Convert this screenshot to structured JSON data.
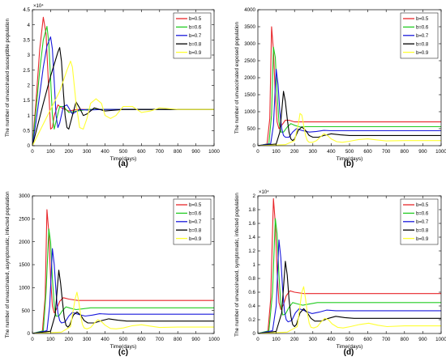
{
  "series_colors": [
    "#e8262a",
    "#22cc22",
    "#1a1adc",
    "#000000",
    "#ffff33"
  ],
  "chart_data": [
    {
      "type": "line",
      "panel_label": "(a)",
      "title": "",
      "xlabel": "Time(days)",
      "ylabel": "The number of unvaccinated susceptible population",
      "exponent": "×10⁴",
      "xlim": [
        0,
        1000
      ],
      "ylim": [
        0,
        4.5
      ],
      "xticks": [
        "0",
        "100",
        "200",
        "300",
        "400",
        "500",
        "600",
        "700",
        "800",
        "900",
        "1000"
      ],
      "yticks": [
        "0",
        "0.5",
        "1",
        "1.5",
        "2",
        "2.5",
        "3",
        "3.5",
        "4",
        "4.5"
      ],
      "legend_position": "top-right",
      "series": [
        {
          "name": "b=0.5",
          "x": [
            0,
            20,
            40,
            60,
            75,
            90,
            100,
            110,
            120,
            140,
            160,
            200,
            250,
            300,
            400,
            500,
            700,
            1000
          ],
          "y": [
            0,
            1.5,
            3.2,
            4.25,
            3.7,
            1.8,
            0.55,
            0.6,
            1.0,
            1.35,
            1.25,
            1.15,
            1.2,
            1.2,
            1.2,
            1.2,
            1.2,
            1.2
          ]
        },
        {
          "name": "b=0.6",
          "x": [
            0,
            20,
            40,
            60,
            80,
            90,
            100,
            110,
            120,
            130,
            150,
            170,
            200,
            250,
            300,
            400,
            600,
            1000
          ],
          "y": [
            0,
            1.2,
            2.5,
            3.5,
            3.95,
            3.4,
            2.2,
            1.0,
            0.55,
            0.8,
            1.3,
            1.3,
            1.1,
            1.15,
            1.2,
            1.2,
            1.2,
            1.2
          ]
        },
        {
          "name": "b=0.7",
          "x": [
            0,
            20,
            40,
            60,
            80,
            100,
            110,
            120,
            130,
            140,
            150,
            170,
            190,
            220,
            260,
            300,
            400,
            600,
            1000
          ],
          "y": [
            0,
            0.8,
            1.7,
            2.6,
            3.3,
            3.6,
            3.2,
            2.1,
            1.0,
            0.6,
            0.75,
            1.3,
            1.35,
            1.05,
            1.2,
            1.18,
            1.2,
            1.2,
            1.2
          ]
        },
        {
          "name": "b=0.8",
          "x": [
            0,
            30,
            60,
            100,
            140,
            150,
            160,
            170,
            180,
            190,
            200,
            220,
            240,
            260,
            280,
            300,
            340,
            400,
            500,
            1000
          ],
          "y": [
            0,
            0.7,
            1.4,
            2.3,
            3.1,
            3.25,
            2.8,
            1.8,
            1.0,
            0.6,
            0.55,
            1.0,
            1.45,
            1.25,
            1.0,
            1.05,
            1.25,
            1.15,
            1.2,
            1.2
          ]
        },
        {
          "name": "b=0.9",
          "x": [
            0,
            50,
            100,
            150,
            190,
            210,
            220,
            240,
            260,
            280,
            300,
            320,
            350,
            380,
            400,
            430,
            460,
            500,
            550,
            600,
            650,
            700,
            800,
            900,
            1000
          ],
          "y": [
            0,
            0.6,
            1.2,
            1.8,
            2.5,
            2.8,
            2.6,
            1.4,
            0.6,
            0.55,
            0.9,
            1.4,
            1.55,
            1.4,
            1.0,
            0.9,
            1.0,
            1.3,
            1.3,
            1.1,
            1.15,
            1.25,
            1.2,
            1.2,
            1.2
          ]
        }
      ]
    },
    {
      "type": "line",
      "panel_label": "(b)",
      "title": "",
      "xlabel": "Time(days)",
      "ylabel": "The number of unvaccinated exposed population",
      "exponent": "",
      "xlim": [
        0,
        1000
      ],
      "ylim": [
        0,
        4000
      ],
      "xticks": [
        "0",
        "100",
        "200",
        "300",
        "400",
        "500",
        "600",
        "700",
        "800",
        "900",
        "1000"
      ],
      "yticks": [
        "0",
        "500",
        "1000",
        "1500",
        "2000",
        "2500",
        "3000",
        "3500",
        "4000"
      ],
      "legend_position": "top-right",
      "series": [
        {
          "name": "b=0.5",
          "x": [
            0,
            50,
            65,
            75,
            85,
            95,
            105,
            115,
            130,
            150,
            170,
            200,
            250,
            300,
            400,
            600,
            1000
          ],
          "y": [
            0,
            50,
            800,
            3500,
            2800,
            1500,
            700,
            500,
            600,
            750,
            750,
            700,
            700,
            700,
            700,
            700,
            700
          ]
        },
        {
          "name": "b=0.6",
          "x": [
            0,
            60,
            75,
            85,
            95,
            105,
            115,
            125,
            140,
            160,
            180,
            200,
            230,
            260,
            300,
            400,
            600,
            1000
          ],
          "y": [
            0,
            60,
            900,
            2900,
            2600,
            1500,
            700,
            400,
            400,
            550,
            650,
            600,
            550,
            560,
            560,
            560,
            560,
            560
          ]
        },
        {
          "name": "b=0.7",
          "x": [
            0,
            70,
            85,
            100,
            110,
            120,
            130,
            140,
            150,
            170,
            190,
            210,
            240,
            280,
            320,
            360,
            400,
            600,
            1000
          ],
          "y": [
            0,
            60,
            600,
            2250,
            1800,
            1000,
            500,
            300,
            250,
            250,
            400,
            500,
            450,
            400,
            420,
            450,
            440,
            440,
            440
          ]
        },
        {
          "name": "b=0.8",
          "x": [
            0,
            100,
            120,
            140,
            150,
            160,
            170,
            180,
            190,
            200,
            220,
            240,
            260,
            280,
            300,
            330,
            360,
            400,
            450,
            500,
            600,
            1000
          ],
          "y": [
            0,
            50,
            400,
            1600,
            1300,
            800,
            400,
            200,
            150,
            200,
            450,
            550,
            450,
            300,
            250,
            250,
            300,
            350,
            320,
            300,
            300,
            300
          ]
        },
        {
          "name": "b=0.9",
          "x": [
            0,
            150,
            200,
            220,
            230,
            240,
            250,
            260,
            270,
            280,
            300,
            320,
            340,
            360,
            380,
            400,
            430,
            460,
            500,
            550,
            600,
            650,
            700,
            800,
            900,
            1000
          ],
          "y": [
            0,
            30,
            150,
            600,
            950,
            900,
            600,
            300,
            150,
            100,
            100,
            150,
            250,
            350,
            300,
            200,
            120,
            100,
            130,
            180,
            200,
            170,
            140,
            150,
            150,
            150
          ]
        }
      ]
    },
    {
      "type": "line",
      "panel_label": "(c)",
      "title": "",
      "xlabel": "Time(days)",
      "ylabel": "The number of unvaccinated, asymptomatic, infected population",
      "exponent": "",
      "xlim": [
        0,
        1000
      ],
      "ylim": [
        0,
        3000
      ],
      "xticks": [
        "0",
        "100",
        "200",
        "300",
        "400",
        "500",
        "600",
        "700",
        "800",
        "900",
        "1000"
      ],
      "yticks": [
        "0",
        "500",
        "1000",
        "1500",
        "2000",
        "2500",
        "3000"
      ],
      "legend_position": "top-right",
      "series": [
        {
          "name": "b=0.5",
          "x": [
            0,
            55,
            70,
            80,
            90,
            100,
            110,
            120,
            135,
            150,
            170,
            200,
            250,
            300,
            400,
            600,
            1000
          ],
          "y": [
            0,
            50,
            800,
            2700,
            2200,
            1200,
            600,
            450,
            550,
            700,
            780,
            750,
            720,
            720,
            720,
            720,
            720
          ]
        },
        {
          "name": "b=0.6",
          "x": [
            0,
            60,
            75,
            90,
            100,
            110,
            120,
            130,
            145,
            165,
            185,
            210,
            240,
            280,
            320,
            400,
            600,
            1000
          ],
          "y": [
            0,
            60,
            900,
            2280,
            2000,
            1200,
            600,
            380,
            380,
            500,
            580,
            550,
            520,
            540,
            560,
            560,
            560,
            560
          ]
        },
        {
          "name": "b=0.7",
          "x": [
            0,
            80,
            95,
            110,
            120,
            130,
            140,
            150,
            160,
            180,
            200,
            220,
            250,
            290,
            330,
            370,
            420,
            600,
            1000
          ],
          "y": [
            0,
            60,
            600,
            1850,
            1500,
            900,
            450,
            280,
            230,
            250,
            380,
            460,
            420,
            380,
            400,
            430,
            420,
            420,
            420
          ]
        },
        {
          "name": "b=0.8",
          "x": [
            0,
            100,
            125,
            145,
            155,
            165,
            175,
            185,
            195,
            205,
            225,
            245,
            265,
            285,
            305,
            340,
            380,
            420,
            470,
            520,
            600,
            1000
          ],
          "y": [
            0,
            50,
            400,
            1380,
            1100,
            700,
            350,
            180,
            140,
            180,
            400,
            470,
            400,
            280,
            230,
            230,
            280,
            320,
            290,
            270,
            270,
            270
          ]
        },
        {
          "name": "b=0.9",
          "x": [
            0,
            160,
            210,
            235,
            245,
            255,
            265,
            275,
            285,
            300,
            320,
            340,
            360,
            380,
            400,
            430,
            460,
            500,
            550,
            600,
            650,
            700,
            800,
            900,
            1000
          ],
          "y": [
            0,
            30,
            150,
            750,
            900,
            700,
            400,
            200,
            120,
            100,
            130,
            220,
            300,
            260,
            180,
            110,
            100,
            120,
            170,
            190,
            160,
            130,
            140,
            140,
            140
          ]
        }
      ]
    },
    {
      "type": "line",
      "panel_label": "(d)",
      "title": "",
      "xlabel": "Time(days)",
      "ylabel": "The number of unvaccinated, symptomatic, infected population",
      "exponent": "×10⁴",
      "xlim": [
        0,
        1000
      ],
      "ylim": [
        0,
        2
      ],
      "xticks": [
        "0",
        "100",
        "200",
        "300",
        "400",
        "500",
        "600",
        "700",
        "800",
        "900",
        "1000"
      ],
      "yticks": [
        "0",
        "0.2",
        "0.4",
        "0.6",
        "0.8",
        "1",
        "1.2",
        "1.4",
        "1.6",
        "1.8",
        "2"
      ],
      "legend_position": "top-right",
      "series": [
        {
          "name": "b=0.5",
          "x": [
            0,
            55,
            70,
            85,
            95,
            105,
            115,
            125,
            140,
            155,
            175,
            200,
            250,
            300,
            400,
            600,
            1000
          ],
          "y": [
            0,
            0.03,
            0.5,
            1.96,
            1.6,
            0.9,
            0.45,
            0.35,
            0.42,
            0.55,
            0.62,
            0.6,
            0.58,
            0.58,
            0.58,
            0.58,
            0.58
          ]
        },
        {
          "name": "b=0.6",
          "x": [
            0,
            60,
            80,
            95,
            105,
            115,
            125,
            135,
            150,
            170,
            190,
            215,
            245,
            285,
            325,
            400,
            600,
            1000
          ],
          "y": [
            0,
            0.04,
            0.6,
            1.67,
            1.45,
            0.85,
            0.42,
            0.27,
            0.28,
            0.38,
            0.45,
            0.43,
            0.41,
            0.43,
            0.45,
            0.45,
            0.45,
            0.45
          ]
        },
        {
          "name": "b=0.7",
          "x": [
            0,
            80,
            100,
            115,
            125,
            135,
            145,
            155,
            165,
            185,
            205,
            225,
            255,
            295,
            335,
            375,
            425,
            600,
            1000
          ],
          "y": [
            0,
            0.04,
            0.4,
            1.36,
            1.1,
            0.65,
            0.32,
            0.2,
            0.17,
            0.19,
            0.3,
            0.36,
            0.33,
            0.29,
            0.31,
            0.34,
            0.33,
            0.33,
            0.33
          ]
        },
        {
          "name": "b=0.8",
          "x": [
            0,
            100,
            130,
            150,
            160,
            170,
            180,
            190,
            200,
            210,
            230,
            250,
            270,
            290,
            310,
            345,
            385,
            425,
            475,
            525,
            600,
            1000
          ],
          "y": [
            0,
            0.03,
            0.3,
            1.05,
            0.85,
            0.5,
            0.25,
            0.13,
            0.1,
            0.13,
            0.3,
            0.36,
            0.3,
            0.22,
            0.18,
            0.18,
            0.22,
            0.25,
            0.23,
            0.22,
            0.22,
            0.22
          ]
        },
        {
          "name": "b=0.9",
          "x": [
            0,
            160,
            215,
            240,
            250,
            260,
            270,
            280,
            290,
            305,
            325,
            345,
            365,
            385,
            405,
            435,
            465,
            505,
            555,
            605,
            655,
            705,
            800,
            900,
            1000
          ],
          "y": [
            0,
            0.02,
            0.1,
            0.6,
            0.68,
            0.5,
            0.3,
            0.15,
            0.09,
            0.08,
            0.1,
            0.17,
            0.22,
            0.2,
            0.14,
            0.09,
            0.08,
            0.1,
            0.13,
            0.15,
            0.12,
            0.1,
            0.11,
            0.11,
            0.11
          ]
        }
      ]
    }
  ]
}
